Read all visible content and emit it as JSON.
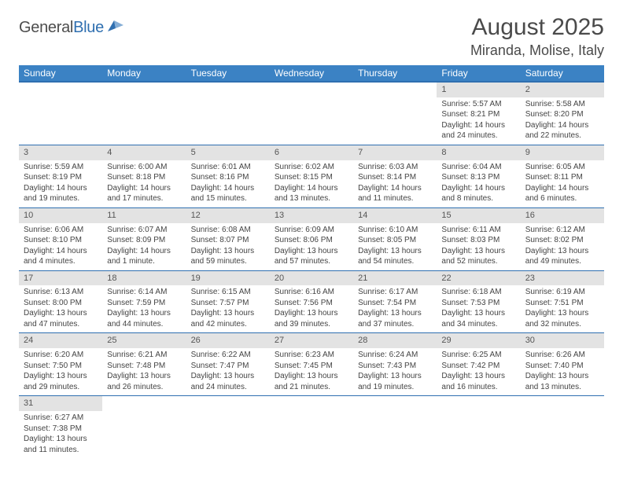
{
  "logo": {
    "text1": "General",
    "text2": "Blue"
  },
  "title": {
    "month": "August 2025",
    "location": "Miranda, Molise, Italy"
  },
  "colors": {
    "header_bg": "#3b82c4",
    "header_border": "#2f6fb0",
    "daynum_bg": "#e3e3e3",
    "text": "#444444"
  },
  "dayHeaders": [
    "Sunday",
    "Monday",
    "Tuesday",
    "Wednesday",
    "Thursday",
    "Friday",
    "Saturday"
  ],
  "weeks": [
    [
      null,
      null,
      null,
      null,
      null,
      {
        "n": "1",
        "sr": "Sunrise: 5:57 AM",
        "ss": "Sunset: 8:21 PM",
        "dl": "Daylight: 14 hours and 24 minutes."
      },
      {
        "n": "2",
        "sr": "Sunrise: 5:58 AM",
        "ss": "Sunset: 8:20 PM",
        "dl": "Daylight: 14 hours and 22 minutes."
      }
    ],
    [
      {
        "n": "3",
        "sr": "Sunrise: 5:59 AM",
        "ss": "Sunset: 8:19 PM",
        "dl": "Daylight: 14 hours and 19 minutes."
      },
      {
        "n": "4",
        "sr": "Sunrise: 6:00 AM",
        "ss": "Sunset: 8:18 PM",
        "dl": "Daylight: 14 hours and 17 minutes."
      },
      {
        "n": "5",
        "sr": "Sunrise: 6:01 AM",
        "ss": "Sunset: 8:16 PM",
        "dl": "Daylight: 14 hours and 15 minutes."
      },
      {
        "n": "6",
        "sr": "Sunrise: 6:02 AM",
        "ss": "Sunset: 8:15 PM",
        "dl": "Daylight: 14 hours and 13 minutes."
      },
      {
        "n": "7",
        "sr": "Sunrise: 6:03 AM",
        "ss": "Sunset: 8:14 PM",
        "dl": "Daylight: 14 hours and 11 minutes."
      },
      {
        "n": "8",
        "sr": "Sunrise: 6:04 AM",
        "ss": "Sunset: 8:13 PM",
        "dl": "Daylight: 14 hours and 8 minutes."
      },
      {
        "n": "9",
        "sr": "Sunrise: 6:05 AM",
        "ss": "Sunset: 8:11 PM",
        "dl": "Daylight: 14 hours and 6 minutes."
      }
    ],
    [
      {
        "n": "10",
        "sr": "Sunrise: 6:06 AM",
        "ss": "Sunset: 8:10 PM",
        "dl": "Daylight: 14 hours and 4 minutes."
      },
      {
        "n": "11",
        "sr": "Sunrise: 6:07 AM",
        "ss": "Sunset: 8:09 PM",
        "dl": "Daylight: 14 hours and 1 minute."
      },
      {
        "n": "12",
        "sr": "Sunrise: 6:08 AM",
        "ss": "Sunset: 8:07 PM",
        "dl": "Daylight: 13 hours and 59 minutes."
      },
      {
        "n": "13",
        "sr": "Sunrise: 6:09 AM",
        "ss": "Sunset: 8:06 PM",
        "dl": "Daylight: 13 hours and 57 minutes."
      },
      {
        "n": "14",
        "sr": "Sunrise: 6:10 AM",
        "ss": "Sunset: 8:05 PM",
        "dl": "Daylight: 13 hours and 54 minutes."
      },
      {
        "n": "15",
        "sr": "Sunrise: 6:11 AM",
        "ss": "Sunset: 8:03 PM",
        "dl": "Daylight: 13 hours and 52 minutes."
      },
      {
        "n": "16",
        "sr": "Sunrise: 6:12 AM",
        "ss": "Sunset: 8:02 PM",
        "dl": "Daylight: 13 hours and 49 minutes."
      }
    ],
    [
      {
        "n": "17",
        "sr": "Sunrise: 6:13 AM",
        "ss": "Sunset: 8:00 PM",
        "dl": "Daylight: 13 hours and 47 minutes."
      },
      {
        "n": "18",
        "sr": "Sunrise: 6:14 AM",
        "ss": "Sunset: 7:59 PM",
        "dl": "Daylight: 13 hours and 44 minutes."
      },
      {
        "n": "19",
        "sr": "Sunrise: 6:15 AM",
        "ss": "Sunset: 7:57 PM",
        "dl": "Daylight: 13 hours and 42 minutes."
      },
      {
        "n": "20",
        "sr": "Sunrise: 6:16 AM",
        "ss": "Sunset: 7:56 PM",
        "dl": "Daylight: 13 hours and 39 minutes."
      },
      {
        "n": "21",
        "sr": "Sunrise: 6:17 AM",
        "ss": "Sunset: 7:54 PM",
        "dl": "Daylight: 13 hours and 37 minutes."
      },
      {
        "n": "22",
        "sr": "Sunrise: 6:18 AM",
        "ss": "Sunset: 7:53 PM",
        "dl": "Daylight: 13 hours and 34 minutes."
      },
      {
        "n": "23",
        "sr": "Sunrise: 6:19 AM",
        "ss": "Sunset: 7:51 PM",
        "dl": "Daylight: 13 hours and 32 minutes."
      }
    ],
    [
      {
        "n": "24",
        "sr": "Sunrise: 6:20 AM",
        "ss": "Sunset: 7:50 PM",
        "dl": "Daylight: 13 hours and 29 minutes."
      },
      {
        "n": "25",
        "sr": "Sunrise: 6:21 AM",
        "ss": "Sunset: 7:48 PM",
        "dl": "Daylight: 13 hours and 26 minutes."
      },
      {
        "n": "26",
        "sr": "Sunrise: 6:22 AM",
        "ss": "Sunset: 7:47 PM",
        "dl": "Daylight: 13 hours and 24 minutes."
      },
      {
        "n": "27",
        "sr": "Sunrise: 6:23 AM",
        "ss": "Sunset: 7:45 PM",
        "dl": "Daylight: 13 hours and 21 minutes."
      },
      {
        "n": "28",
        "sr": "Sunrise: 6:24 AM",
        "ss": "Sunset: 7:43 PM",
        "dl": "Daylight: 13 hours and 19 minutes."
      },
      {
        "n": "29",
        "sr": "Sunrise: 6:25 AM",
        "ss": "Sunset: 7:42 PM",
        "dl": "Daylight: 13 hours and 16 minutes."
      },
      {
        "n": "30",
        "sr": "Sunrise: 6:26 AM",
        "ss": "Sunset: 7:40 PM",
        "dl": "Daylight: 13 hours and 13 minutes."
      }
    ],
    [
      {
        "n": "31",
        "sr": "Sunrise: 6:27 AM",
        "ss": "Sunset: 7:38 PM",
        "dl": "Daylight: 13 hours and 11 minutes."
      },
      null,
      null,
      null,
      null,
      null,
      null
    ]
  ]
}
